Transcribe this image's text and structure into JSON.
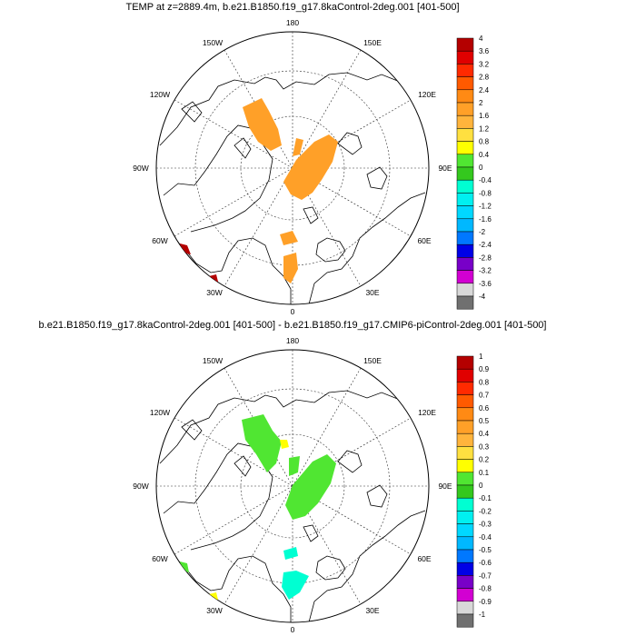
{
  "panels": [
    {
      "title": "TEMP at z=2889.4m, b.e21.B1850.f19_g17.8kaControl-2deg.001 [401-500]",
      "lon_labels": [
        "180",
        "150E",
        "120E",
        "90E",
        "60E",
        "30E",
        "0",
        "30W",
        "60W",
        "90W",
        "120W",
        "150W"
      ],
      "colorbar": {
        "labels": [
          "4",
          "3.6",
          "3.2",
          "2.8",
          "2.4",
          "2",
          "1.6",
          "1.2",
          "0.8",
          "0.4",
          "0",
          "-0.4",
          "-0.8",
          "-1.2",
          "-1.6",
          "-2",
          "-2.4",
          "-2.8",
          "-3.2",
          "-3.6",
          "-4"
        ],
        "colors": [
          "#b40000",
          "#e00000",
          "#ff2a00",
          "#ff5a00",
          "#ff8a14",
          "#ffa028",
          "#ffb43c",
          "#ffe040",
          "#ffff00",
          "#50e632",
          "#34c81e",
          "#00ffd2",
          "#00f0f0",
          "#00d8ff",
          "#00b8ff",
          "#0078ff",
          "#0000e6",
          "#7800c8",
          "#d200d2",
          "#d8d8d8",
          "#707070"
        ]
      }
    },
    {
      "title": "b.e21.B1850.f19_g17.8kaControl-2deg.001 [401-500] - b.e21.B1850.f19_g17.CMIP6-piControl-2deg.001 [401-500]",
      "lon_labels": [
        "180",
        "150E",
        "120E",
        "90E",
        "60E",
        "30E",
        "0",
        "30W",
        "60W",
        "90W",
        "120W",
        "150W"
      ],
      "colorbar": {
        "labels": [
          "1",
          "0.9",
          "0.8",
          "0.7",
          "0.6",
          "0.5",
          "0.4",
          "0.3",
          "0.2",
          "0.1",
          "0",
          "-0.1",
          "-0.2",
          "-0.3",
          "-0.4",
          "-0.5",
          "-0.6",
          "-0.7",
          "-0.8",
          "-0.9",
          "-1"
        ],
        "colors": [
          "#b40000",
          "#e00000",
          "#ff2a00",
          "#ff5a00",
          "#ff8a14",
          "#ffa028",
          "#ffb43c",
          "#ffe040",
          "#ffff00",
          "#50e632",
          "#34c81e",
          "#00ffd2",
          "#00f0f0",
          "#00d8ff",
          "#00b8ff",
          "#0078ff",
          "#0000e6",
          "#7800c8",
          "#d200d2",
          "#d8d8d8",
          "#707070"
        ]
      }
    }
  ]
}
